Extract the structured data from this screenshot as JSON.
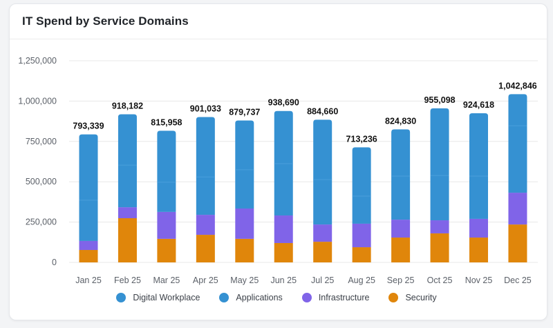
{
  "card": {
    "title": "IT Spend by Service Domains"
  },
  "colors": {
    "digital_workplace": "#3591d2",
    "applications": "#3591d2",
    "infrastructure": "#8064e8",
    "security": "#e0860b",
    "gridline": "#e8e8e8"
  },
  "chart_data": {
    "type": "bar",
    "stacked": true,
    "title": "IT Spend by Service Domains",
    "xlabel": "",
    "ylabel": "",
    "ylim": [
      0,
      1250000
    ],
    "yticks": [
      0,
      250000,
      500000,
      750000,
      1000000,
      1250000
    ],
    "ytick_labels": [
      "0",
      "250,000",
      "500,000",
      "750,000",
      "1,000,000",
      "1,250,000"
    ],
    "grid": true,
    "legend_position": "bottom",
    "categories": [
      "Jan 25",
      "Feb 25",
      "Mar 25",
      "Apr 25",
      "May 25",
      "Jun 25",
      "Jul 25",
      "Aug 25",
      "Sep 25",
      "Oct 25",
      "Nov 25",
      "Dec 25"
    ],
    "series": [
      {
        "name": "Security",
        "key": "security",
        "values": [
          77000,
          274000,
          146000,
          171000,
          146000,
          120000,
          128000,
          94000,
          154000,
          180000,
          154000,
          235000
        ]
      },
      {
        "name": "Infrastructure",
        "key": "infrastructure",
        "values": [
          56000,
          68000,
          167000,
          124000,
          188000,
          171000,
          107000,
          146000,
          111000,
          81000,
          116000,
          197000
        ]
      },
      {
        "name": "Applications",
        "key": "applications",
        "values": [
          253000,
          261000,
          184000,
          235000,
          240000,
          321000,
          278000,
          171000,
          270000,
          278000,
          265000,
          415000
        ]
      },
      {
        "name": "Digital Workplace",
        "key": "digital_workplace",
        "values": [
          407339,
          315182,
          318958,
          371033,
          305737,
          326690,
          371660,
          302236,
          289830,
          416098,
          389618,
          195846
        ]
      }
    ],
    "totals": [
      793339,
      918182,
      815958,
      901033,
      879737,
      938690,
      884660,
      713236,
      824830,
      955098,
      924618,
      1042846
    ],
    "total_labels": [
      "793,339",
      "918,182",
      "815,958",
      "901,033",
      "879,737",
      "938,690",
      "884,660",
      "713,236",
      "824,830",
      "955,098",
      "924,618",
      "1,042,846"
    ],
    "legend": [
      "Digital Workplace",
      "Applications",
      "Infrastructure",
      "Security"
    ]
  }
}
